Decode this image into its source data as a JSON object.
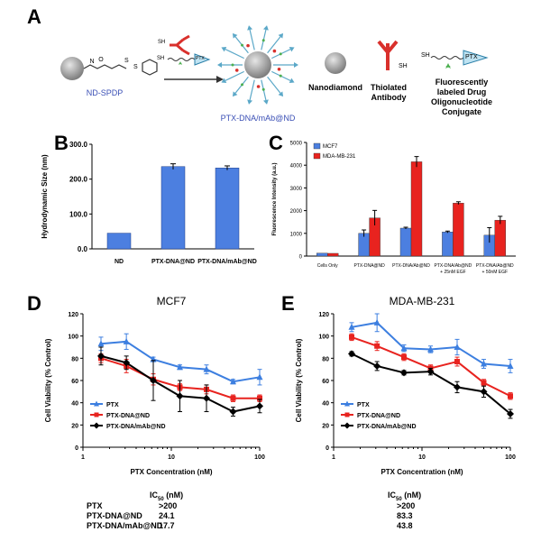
{
  "panels": {
    "a": "A",
    "b": "B",
    "c": "C",
    "d": "D",
    "e": "E"
  },
  "schematic": {
    "nd_spdp": "ND-SPDP",
    "sh_small_1": "SH",
    "sh_small_2": "SH",
    "ptx_small": "PTX",
    "product": "PTX-DNA/mAb@ND",
    "legend_nanodiamond": "Nanodiamond",
    "legend_antibody": "Thiolated Antibody",
    "legend_conjugate": "Fluorescently labeled Drug Oligonucleotide Conjugate",
    "legend_sh_ab": "SH",
    "legend_sh_conj": "SH",
    "legend_ptx": "PTX",
    "colors": {
      "nanodiamond": "#9a9a9a",
      "antibody": "#d9302c",
      "ptx_tag": "#bfe3f2",
      "fluor": "#4caf50",
      "arrow": "#5ba8c8"
    }
  },
  "chart_data": [
    {
      "id": "B",
      "type": "bar",
      "categories": [
        "ND",
        "PTX-DNA@ND",
        "PTX-DNA/mAb@ND"
      ],
      "values": [
        45,
        236,
        232
      ],
      "errors": [
        0,
        8,
        6
      ],
      "ylabel": "Hydrodynamic Size (nm)",
      "ylim": [
        0,
        300
      ],
      "yticks": [
        "0.0",
        "100.0",
        "200.0",
        "300.0"
      ],
      "colors": [
        "#4c7fe0"
      ],
      "grid": false
    },
    {
      "id": "C",
      "type": "bar",
      "categories": [
        "Cells Only",
        "PTX-DNA@ND",
        "PTX-DNA/Ab@ND",
        "PTX-DNA/Ab@ND + 25nM EGF",
        "PTX-DNA/Ab@ND + 50nM EGF"
      ],
      "category_lines": [
        [
          "Cells Only"
        ],
        [
          "PTX-DNA@ND"
        ],
        [
          "PTX-DNA/Ab@ND"
        ],
        [
          "PTX-DNA/Ab@ND",
          "+ 25nM EGF"
        ],
        [
          "PTX-DNA/Ab@ND",
          "+ 50nM EGF"
        ]
      ],
      "series": [
        {
          "name": "MCF7",
          "color": "#4c7fe0",
          "values": [
            130,
            1000,
            1230,
            1060,
            920
          ],
          "errors": [
            0,
            150,
            40,
            40,
            330
          ]
        },
        {
          "name": "MDA-MB-231",
          "color": "#e8231f",
          "values": [
            120,
            1680,
            4150,
            2330,
            1580
          ],
          "errors": [
            0,
            330,
            230,
            60,
            170
          ]
        }
      ],
      "ylabel": "Fluorescence Intensity (a.u.)",
      "ylim": [
        0,
        5000
      ],
      "yticks": [
        "0",
        "1000",
        "2000",
        "3000",
        "4000",
        "5000"
      ],
      "legend": "top-left",
      "grid": false
    },
    {
      "id": "D",
      "type": "line",
      "title": "MCF7",
      "xlabel": "PTX Concentration (nM)",
      "ylabel": "Cell Viability (% Control)",
      "xscale": "log",
      "xlim": [
        1,
        100
      ],
      "xticks": [
        "1",
        "10",
        "100"
      ],
      "ylim": [
        0,
        120
      ],
      "yticks": [
        "0",
        "20",
        "40",
        "60",
        "80",
        "100",
        "120"
      ],
      "x": [
        1.6,
        3.1,
        6.25,
        12.5,
        25,
        50,
        100
      ],
      "series": [
        {
          "name": "PTX",
          "color": "#3d7fe0",
          "marker": "triangle",
          "values": [
            93,
            95,
            79,
            72,
            70,
            59,
            63
          ],
          "errors": [
            6,
            7,
            2,
            2,
            4,
            2,
            7
          ]
        },
        {
          "name": "PTX-DNA@ND",
          "color": "#e8231f",
          "marker": "square",
          "values": [
            80,
            73,
            61,
            54,
            52,
            44,
            44
          ],
          "errors": [
            4,
            6,
            5,
            3,
            4,
            3,
            3
          ]
        },
        {
          "name": "PTX-DNA/mAb@ND",
          "color": "#000000",
          "marker": "diamond",
          "values": [
            82,
            76,
            60,
            46,
            44,
            32,
            37
          ],
          "errors": [
            8,
            6,
            18,
            14,
            12,
            4,
            6
          ]
        }
      ],
      "legend": "bottom-left",
      "grid": false
    },
    {
      "id": "E",
      "type": "line",
      "title": "MDA-MB-231",
      "xlabel": "PTX Concentration (nM)",
      "ylabel": "Cell Viability (% Control)",
      "xscale": "log",
      "xlim": [
        1,
        100
      ],
      "xticks": [
        "1",
        "10",
        "100"
      ],
      "ylim": [
        0,
        120
      ],
      "yticks": [
        "0",
        "20",
        "40",
        "60",
        "80",
        "100",
        "120"
      ],
      "x": [
        1.6,
        3.1,
        6.25,
        12.5,
        25,
        50,
        100
      ],
      "series": [
        {
          "name": "PTX",
          "color": "#3d7fe0",
          "marker": "triangle",
          "values": [
            108,
            112,
            89,
            88,
            90,
            75,
            73
          ],
          "errors": [
            4,
            8,
            3,
            3,
            7,
            4,
            6
          ]
        },
        {
          "name": "PTX-DNA@ND",
          "color": "#e8231f",
          "marker": "square",
          "values": [
            99,
            91,
            81,
            71,
            77,
            58,
            46
          ],
          "errors": [
            3,
            4,
            3,
            3,
            4,
            3,
            3
          ]
        },
        {
          "name": "PTX-DNA/mAb@ND",
          "color": "#000000",
          "marker": "diamond",
          "values": [
            84,
            73,
            67,
            68,
            54,
            50,
            30
          ],
          "errors": [
            2,
            4,
            2,
            3,
            5,
            5,
            4
          ]
        }
      ],
      "legend": "bottom-left",
      "grid": false
    }
  ],
  "ic50": {
    "header_prefix": "IC",
    "header_sub": "50",
    "header_suffix": " (nM)",
    "rows": [
      {
        "label": "PTX",
        "mcf7": ">200",
        "mda": ">200"
      },
      {
        "label": "PTX-DNA@ND",
        "mcf7": "24.1",
        "mda": "83.3"
      },
      {
        "label": "PTX-DNA/mAb@ND",
        "mcf7": "17.7",
        "mda": "43.8"
      }
    ]
  }
}
